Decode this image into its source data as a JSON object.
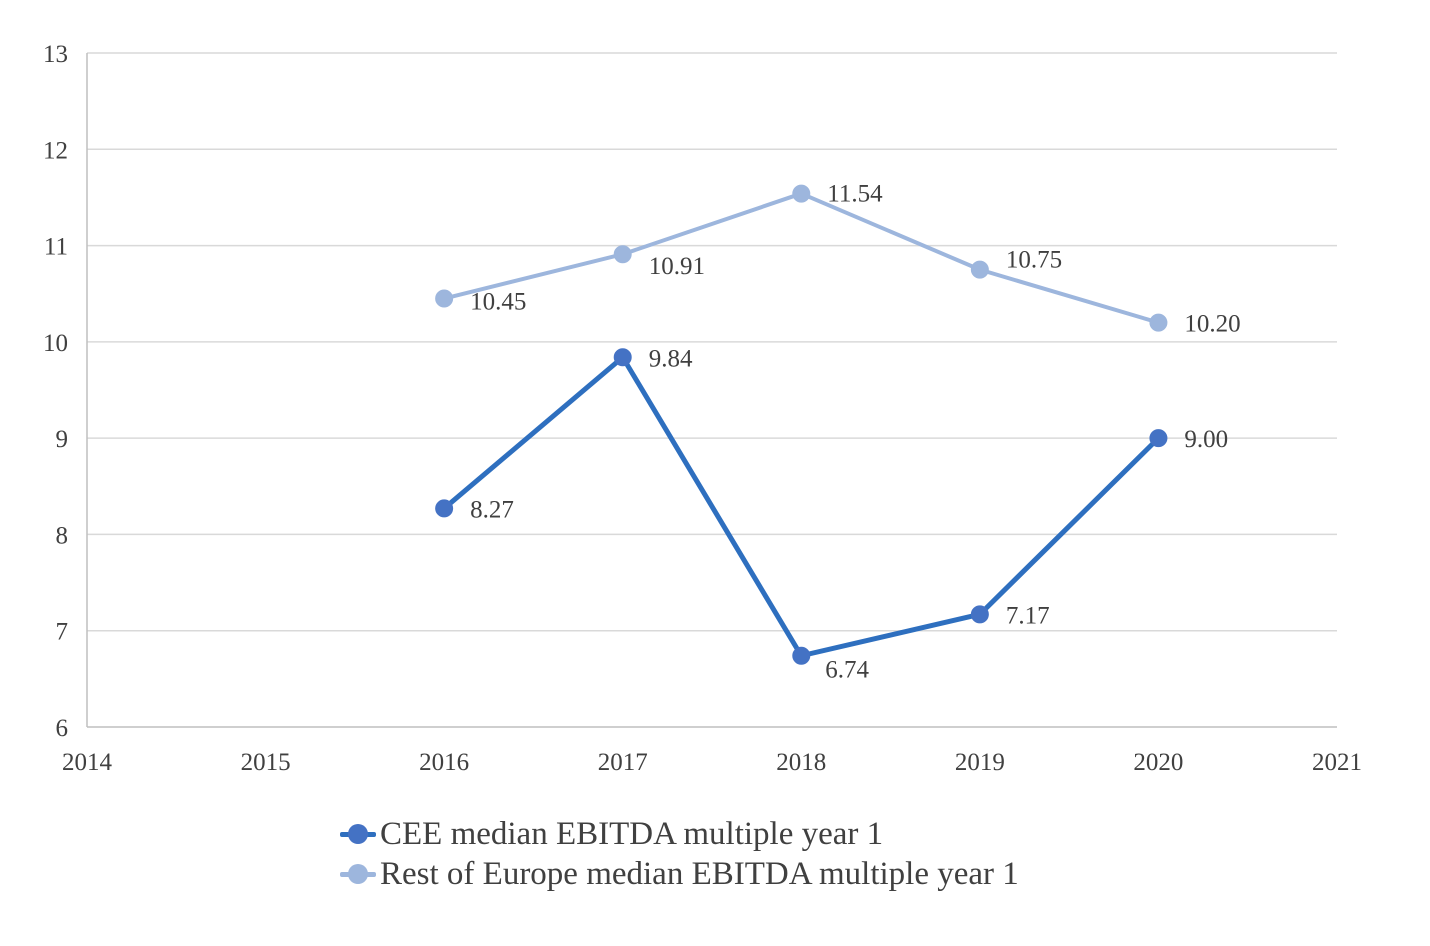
{
  "chart_data": {
    "type": "line",
    "title": "",
    "xlabel": "",
    "ylabel": "",
    "xlim": [
      2014,
      2021
    ],
    "ylim": [
      6,
      13
    ],
    "x_ticks": [
      "2014",
      "2015",
      "2016",
      "2017",
      "2018",
      "2019",
      "2020",
      "2021"
    ],
    "y_ticks": [
      "6",
      "7",
      "8",
      "9",
      "10",
      "11",
      "12",
      "13"
    ],
    "grid": "horizontal",
    "legend_position": "bottom",
    "x": [
      2016,
      2017,
      2018,
      2019,
      2020
    ],
    "series": [
      {
        "name": "CEE median EBITDA multiple year 1",
        "color": "#2e6fbf",
        "marker_color": "#4472c4",
        "values": [
          8.27,
          9.84,
          6.74,
          7.17,
          9.0
        ],
        "labels": [
          "8.27",
          "9.84",
          "6.74",
          "7.17",
          "9.00"
        ]
      },
      {
        "name": "Rest of Europe median EBITDA multiple year 1",
        "color": "#9db6dd",
        "marker_color": "#9db6dd",
        "values": [
          10.45,
          10.91,
          11.54,
          10.75,
          10.2
        ],
        "labels": [
          "10.45",
          "10.91",
          "11.54",
          "10.75",
          "10.20"
        ]
      }
    ]
  }
}
